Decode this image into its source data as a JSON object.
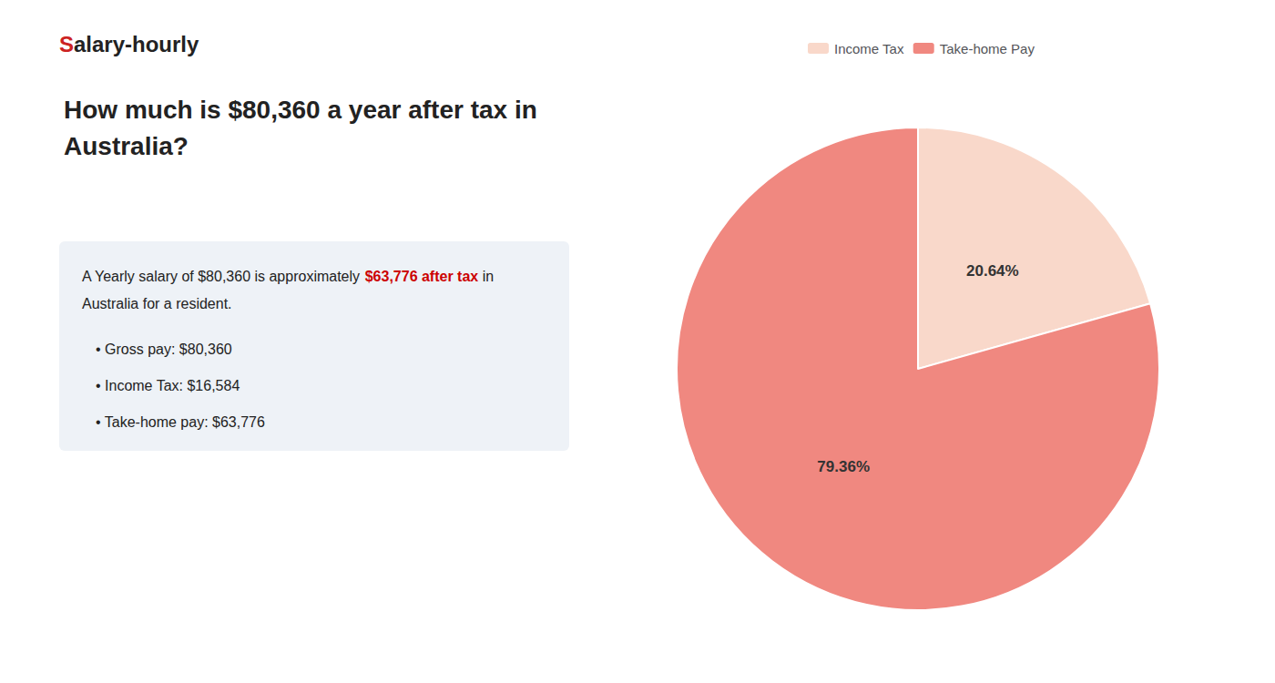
{
  "chart_data": {
    "type": "pie",
    "title": "How much is $80,360 a year after tax in\nAustralia?",
    "categories": [
      "Income Tax",
      "Take-home Pay"
    ],
    "values": [
      20.64,
      79.36
    ],
    "value_labels": [
      "20.64%",
      "79.36%"
    ],
    "colors": [
      "#f9d8ca",
      "#f08880"
    ],
    "data_labels": true,
    "legend": "top",
    "annotations": [
      [
        {
          "text": "S",
          "color": "#cc2222"
        },
        {
          "text": "alary-hourly"
        }
      ],
      [
        {
          "text": "A Yearly salary of $80,360 is approximately "
        },
        {
          "text": "$63,776 after tax",
          "color": "#cc0000"
        },
        {
          "text": " in"
        }
      ],
      [
        {
          "text": "Australia for a resident."
        }
      ],
      [
        {
          "text": "• Gross pay: $80,360"
        }
      ],
      [
        {
          "text": "• Income Tax: $16,584"
        }
      ],
      [
        {
          "text": "• Take-home pay: $63,776"
        }
      ]
    ]
  }
}
